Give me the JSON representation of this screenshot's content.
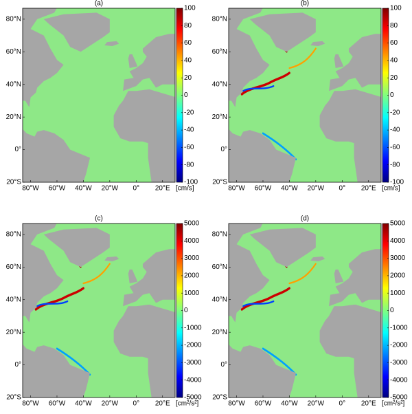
{
  "lat_ticks": [
    {
      "value": 80,
      "label": "80°N"
    },
    {
      "value": 60,
      "label": "60°N"
    },
    {
      "value": 40,
      "label": "40°N"
    },
    {
      "value": 20,
      "label": "20°N"
    },
    {
      "value": 0,
      "label": "0°"
    },
    {
      "value": -20,
      "label": "20°S"
    }
  ],
  "lon_ticks": [
    {
      "value": -80,
      "label": "80°W"
    },
    {
      "value": -60,
      "label": "60°W"
    },
    {
      "value": -40,
      "label": "40°W"
    },
    {
      "value": -20,
      "label": "20°W"
    },
    {
      "value": 0,
      "label": "0°"
    },
    {
      "value": 20,
      "label": "20°E"
    }
  ],
  "panels": [
    {
      "label": "(a)",
      "colorbar": {
        "range": [
          -100,
          100
        ],
        "ticks": [
          100,
          80,
          60,
          40,
          20,
          0,
          -20,
          -40,
          -60,
          -80,
          -100
        ],
        "unit": "[cm/s]"
      }
    },
    {
      "label": "(b)",
      "colorbar": {
        "range": [
          -100,
          100
        ],
        "ticks": [
          100,
          80,
          60,
          40,
          20,
          0,
          -20,
          -40,
          -60,
          -80,
          -100
        ],
        "unit": "[cm/s]"
      }
    },
    {
      "label": "(c)",
      "colorbar": {
        "range": [
          -5000,
          5000
        ],
        "ticks": [
          5000,
          4000,
          3000,
          2000,
          1000,
          0,
          -1000,
          -2000,
          -3000,
          -4000,
          -5000
        ],
        "unit": "[cm²/s²]"
      }
    },
    {
      "label": "(d)",
      "colorbar": {
        "range": [
          -5000,
          5000
        ],
        "ticks": [
          5000,
          4000,
          3000,
          2000,
          1000,
          0,
          -1000,
          -2000,
          -3000,
          -4000,
          -5000
        ],
        "unit": "[cm²/s²]"
      }
    }
  ]
}
